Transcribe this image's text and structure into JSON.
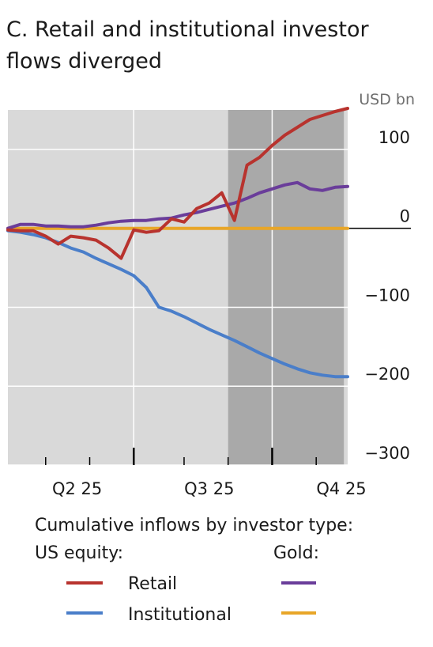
{
  "chart_data": {
    "type": "line",
    "title_lines": [
      "C. Retail and institutional investor",
      "flows diverged"
    ],
    "unit_label": "USD bn",
    "ylim": [
      -300,
      150
    ],
    "xlim": [
      0,
      27
    ],
    "y_ticks": [
      {
        "value": 100,
        "label": "100"
      },
      {
        "value": 0,
        "label": "0"
      },
      {
        "value": -100,
        "label": "−100"
      },
      {
        "value": -200,
        "label": "−200"
      },
      {
        "value": -300,
        "label": "−300"
      }
    ],
    "x_category_labels": [
      {
        "at": 5.5,
        "label": "Q2 25"
      },
      {
        "at": 16,
        "label": "Q3 25"
      },
      {
        "at": 26.5,
        "label": "Q4 25"
      }
    ],
    "x_major_ticks": [
      10,
      21
    ],
    "x_minor_ticks": [
      3,
      6.5,
      14,
      17.5,
      24.5
    ],
    "x_minor_gridlines": [
      10,
      21
    ],
    "shaded_periods": [
      [
        17.5,
        26.7
      ]
    ],
    "series": [
      {
        "name": "Retail",
        "group": "US equity",
        "color": "#b8332e",
        "x": [
          0,
          1,
          2,
          3,
          4,
          5,
          6,
          7,
          8,
          9,
          10,
          11,
          12,
          13,
          14,
          15,
          16,
          17,
          18,
          19,
          20,
          21,
          22,
          23,
          24,
          25,
          26,
          27
        ],
        "y": [
          -2,
          -3,
          -3,
          -10,
          -20,
          -10,
          -12,
          -15,
          -25,
          -38,
          -2,
          -5,
          -3,
          12,
          8,
          25,
          32,
          45,
          10,
          80,
          90,
          105,
          118,
          128,
          138,
          143,
          148,
          152
        ]
      },
      {
        "name": "Institutional",
        "group": "US equity",
        "color": "#4a7ec9",
        "x": [
          0,
          1,
          2,
          3,
          4,
          5,
          6,
          7,
          8,
          9,
          10,
          11,
          12,
          13,
          14,
          15,
          16,
          17,
          18,
          19,
          20,
          21,
          22,
          23,
          24,
          25,
          26,
          27
        ],
        "y": [
          -3,
          -5,
          -8,
          -12,
          -18,
          -25,
          -30,
          -38,
          -45,
          -52,
          -60,
          -75,
          -100,
          -105,
          -112,
          -120,
          -128,
          -135,
          -142,
          -150,
          -158,
          -165,
          -172,
          -178,
          -183,
          -186,
          -188,
          -188
        ]
      },
      {
        "name": "",
        "group": "Gold",
        "color": "#6a3d9a",
        "x": [
          0,
          1,
          2,
          3,
          4,
          5,
          6,
          7,
          8,
          9,
          10,
          11,
          12,
          13,
          14,
          15,
          16,
          17,
          18,
          19,
          20,
          21,
          22,
          23,
          24,
          25,
          26,
          27
        ],
        "y": [
          0,
          5,
          5,
          3,
          3,
          2,
          2,
          4,
          7,
          9,
          10,
          10,
          12,
          13,
          17,
          20,
          24,
          28,
          32,
          38,
          45,
          50,
          55,
          58,
          50,
          48,
          52,
          53
        ]
      },
      {
        "name": "",
        "group": "Gold",
        "color": "#e8a628",
        "x": [
          0,
          27
        ],
        "y": [
          0,
          0
        ]
      }
    ],
    "legend": {
      "caption": "Cumulative inflows by investor type:",
      "group_labels": [
        "US equity:",
        "Gold:"
      ]
    },
    "grid": true,
    "legend_position": "bottom"
  }
}
